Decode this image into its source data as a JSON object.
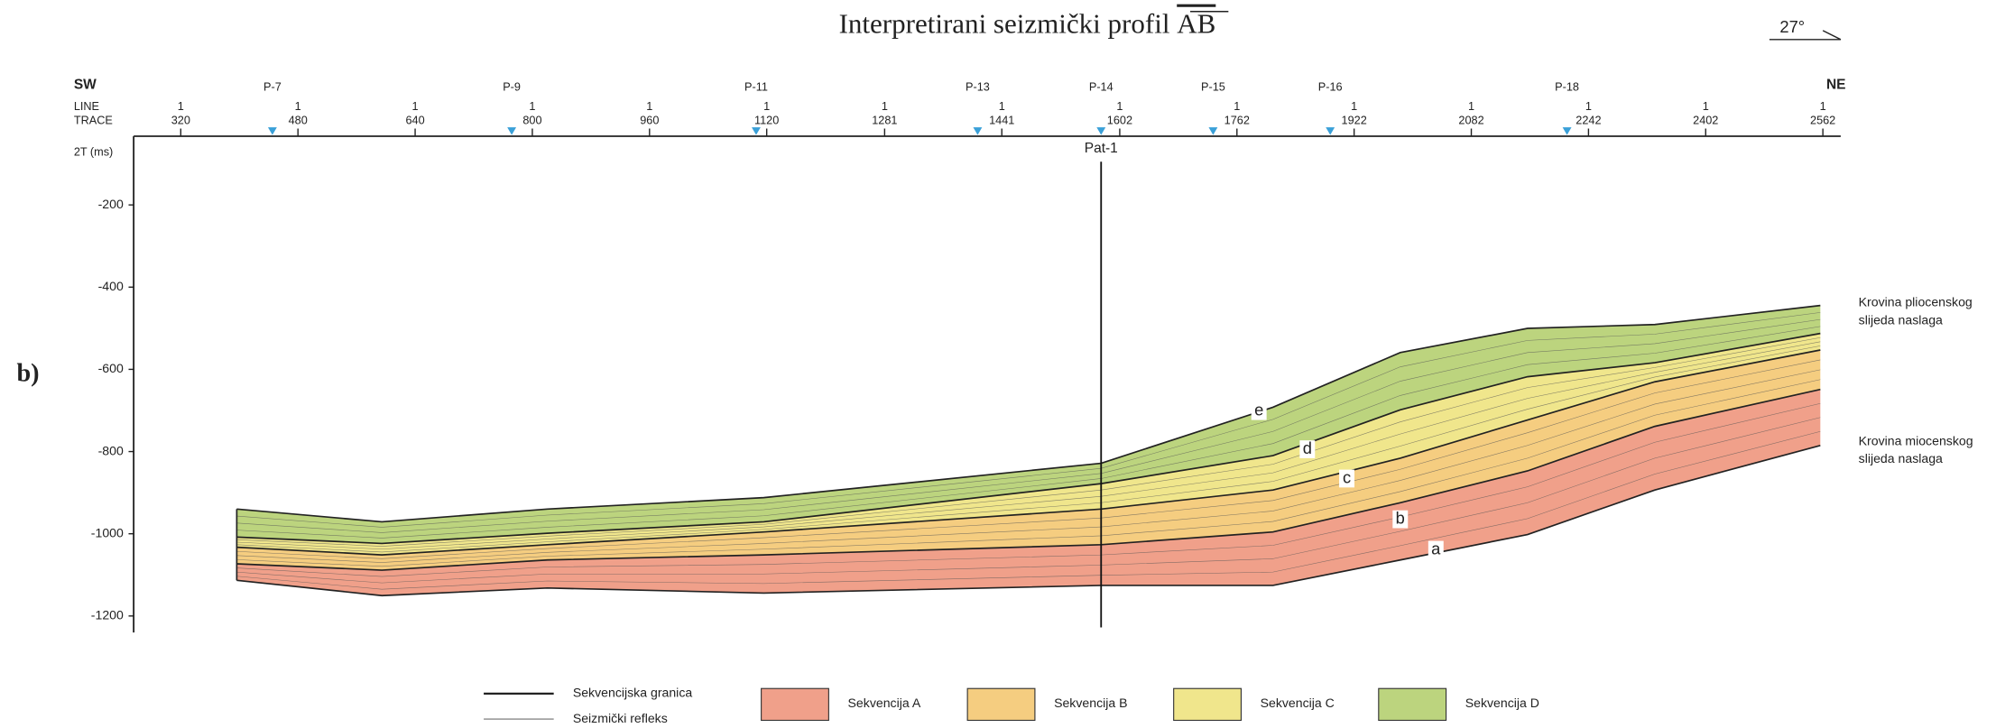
{
  "title": "Interpretirani seizmički profil",
  "title_section": "AB",
  "orientation": "27°",
  "panel_label": "b)",
  "header": {
    "left": "SW",
    "right": "NE",
    "line_label": "LINE",
    "trace_label": "TRACE"
  },
  "traces": [
    {
      "line": 1,
      "trace": 320
    },
    {
      "line": 1,
      "trace": 480
    },
    {
      "line": 1,
      "trace": 640
    },
    {
      "line": 1,
      "trace": 800
    },
    {
      "line": 1,
      "trace": 960
    },
    {
      "line": 1,
      "trace": 1120
    },
    {
      "line": 1,
      "trace": 1281
    },
    {
      "line": 1,
      "trace": 1441
    },
    {
      "line": 1,
      "trace": 1602
    },
    {
      "line": 1,
      "trace": 1762
    },
    {
      "line": 1,
      "trace": 1922
    },
    {
      "line": 1,
      "trace": 2082
    },
    {
      "line": 1,
      "trace": 2242
    },
    {
      "line": 1,
      "trace": 2402
    },
    {
      "line": 1,
      "trace": 2562
    }
  ],
  "wells": [
    "P-7",
    "P-9",
    "P-11",
    "P-13",
    "P-14",
    "P-15",
    "P-16",
    "P-18"
  ],
  "y_axis": {
    "label": "2T (ms)",
    "ticks": [
      -200,
      -400,
      -600,
      -800,
      -1000,
      -1200
    ]
  },
  "borehole": "Pat-1",
  "horizons": [
    "a",
    "b",
    "c",
    "d",
    "e"
  ],
  "annotations": [
    [
      "Krovina pliocenskog",
      "slijeda naslaga"
    ],
    [
      "Krovina miocenskog",
      "slijeda naslaga"
    ]
  ],
  "legend": {
    "lines": [
      "Sekvencijska granica",
      "Seizmički refleks"
    ],
    "sequences": [
      "Sekvencija A",
      "Sekvencija B",
      "Sekvencija C",
      "Sekvencija D"
    ]
  }
}
